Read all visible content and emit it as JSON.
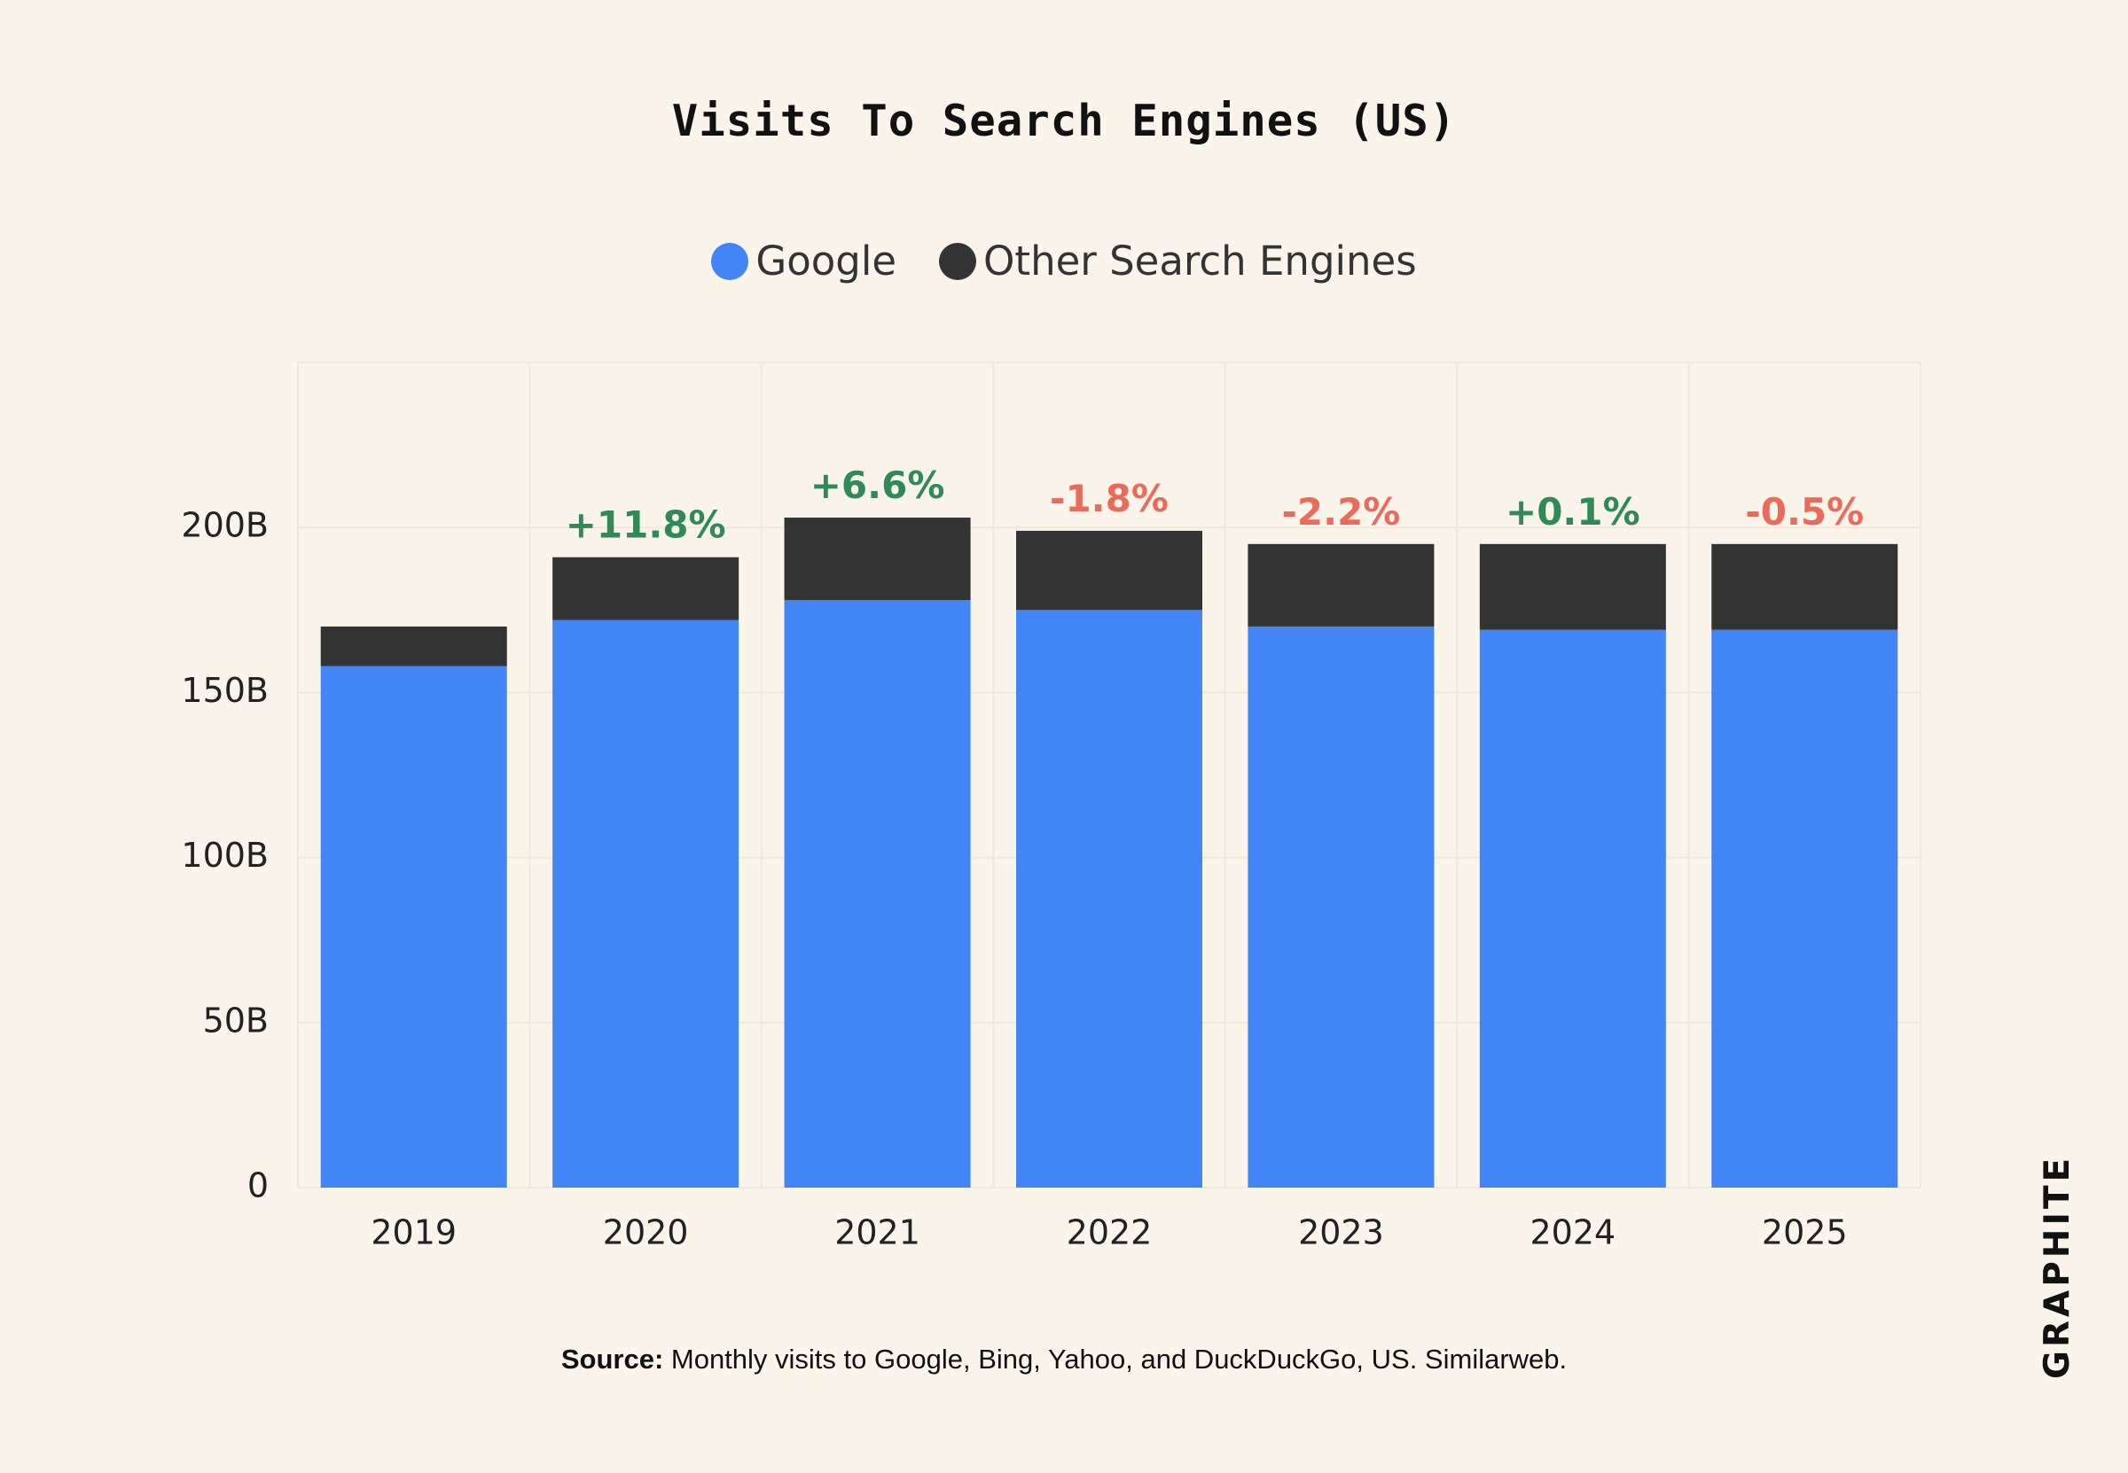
{
  "colors": {
    "background": "#fbf4ea",
    "google": "#4285f4",
    "other": "#333333",
    "positive": "#2e8b57",
    "negative": "#ea6b5a",
    "grid": "#efe9dc"
  },
  "chart_data": {
    "type": "bar",
    "stacked": true,
    "title": "Visits To Search Engines (US)",
    "xlabel": "",
    "ylabel": "",
    "ylim": [
      0,
      250
    ],
    "y_ticks": [
      0,
      50,
      100,
      150,
      200
    ],
    "y_tick_labels": [
      "0",
      "50B",
      "100B",
      "150B",
      "200B"
    ],
    "categories": [
      "2019",
      "2020",
      "2021",
      "2022",
      "2023",
      "2024",
      "2025"
    ],
    "series": [
      {
        "name": "Google",
        "color": "#4285f4",
        "values": [
          158,
          172,
          178,
          175,
          170,
          169,
          169
        ]
      },
      {
        "name": "Other Search Engines",
        "color": "#333333",
        "values": [
          12,
          19,
          25,
          24,
          25,
          26,
          26
        ]
      }
    ],
    "annotations": [
      "",
      "+11.8%",
      "+6.6%",
      "-1.8%",
      "-2.2%",
      "+0.1%",
      "-0.5%"
    ],
    "legend_position": "top-center",
    "grid": true
  },
  "source": {
    "label": "Source:",
    "text": " Monthly visits to Google, Bing, Yahoo, and DuckDuckGo, US. Similarweb."
  },
  "brand": {
    "text": "GRAPHITE",
    "icon": "graphite-logo"
  }
}
